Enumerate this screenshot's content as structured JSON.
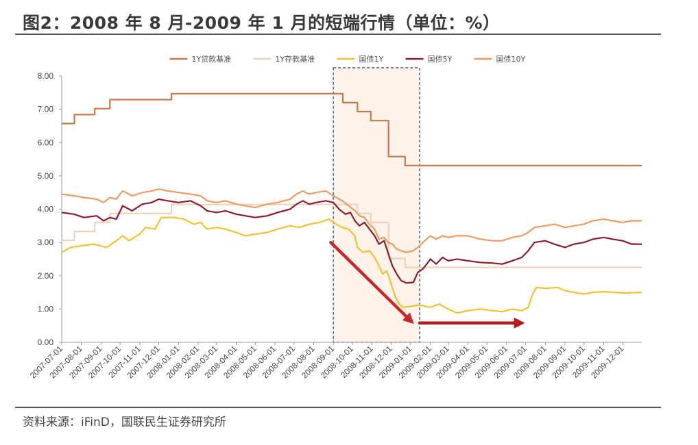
{
  "header": {
    "title": "图2：2008 年 8 月-2009 年 1 月的短端行情（单位：%）"
  },
  "footer": {
    "source": "资料来源：iFinD，国联民生证券研究所"
  },
  "chart_data": {
    "type": "line",
    "title": "图2：2008 年 8 月-2009 年 1 月的短端行情（单位：%）",
    "ylim": [
      0,
      8
    ],
    "y_ticks": [
      "0.00",
      "1.00",
      "2.00",
      "3.00",
      "4.00",
      "5.00",
      "6.00",
      "7.00",
      "8.00"
    ],
    "x_range": [
      "2007-07-01",
      "2009-12-31"
    ],
    "x_ticks": [
      "2007-07-01",
      "2007-08-01",
      "2007-09-01",
      "2007-10-01",
      "2007-11-01",
      "2007-12-01",
      "2008-01-01",
      "2008-02-01",
      "2008-03-01",
      "2008-04-01",
      "2008-05-01",
      "2008-06-01",
      "2008-07-01",
      "2008-08-01",
      "2008-09-01",
      "2008-10-01",
      "2008-11-01",
      "2008-12-01",
      "2009-01-01",
      "2009-02-01",
      "2009-03-01",
      "2009-04-01",
      "2009-05-01",
      "2009-06-01",
      "2009-07-01",
      "2009-08-01",
      "2009-09-01",
      "2009-10-01",
      "2009-11-01",
      "2009-12-01"
    ],
    "grid": false,
    "legend_position": "top",
    "highlight_region": {
      "from": "2008-09-01",
      "to": "2009-01-15",
      "fill": "#fdf3ea"
    },
    "annotations": [
      {
        "type": "arrow",
        "from": [
          "2008-08-28",
          3.0
        ],
        "to": [
          "2009-01-06",
          0.55
        ],
        "color": "#c62828"
      },
      {
        "type": "arrow",
        "from": [
          "2009-01-15",
          0.58
        ],
        "to": [
          "2009-06-30",
          0.58
        ],
        "color": "#b71c1c"
      }
    ],
    "series": [
      {
        "name": "1Y贷款基准",
        "color": "#c8794a",
        "step": true,
        "points": [
          [
            "2007-07-01",
            6.57
          ],
          [
            "2007-07-21",
            6.84
          ],
          [
            "2007-08-22",
            7.02
          ],
          [
            "2007-09-15",
            7.29
          ],
          [
            "2007-12-21",
            7.47
          ],
          [
            "2008-09-16",
            7.2
          ],
          [
            "2008-10-09",
            6.93
          ],
          [
            "2008-10-30",
            6.66
          ],
          [
            "2008-11-27",
            5.58
          ],
          [
            "2008-12-23",
            5.31
          ],
          [
            "2009-12-31",
            5.31
          ]
        ]
      },
      {
        "name": "1Y存款基准",
        "color": "#ecd3b8",
        "step": true,
        "points": [
          [
            "2007-07-01",
            3.06
          ],
          [
            "2007-07-21",
            3.33
          ],
          [
            "2007-08-22",
            3.6
          ],
          [
            "2007-09-15",
            3.87
          ],
          [
            "2007-12-21",
            4.14
          ],
          [
            "2008-10-09",
            3.87
          ],
          [
            "2008-10-30",
            3.6
          ],
          [
            "2008-11-27",
            2.52
          ],
          [
            "2008-12-23",
            2.25
          ],
          [
            "2009-12-31",
            2.25
          ]
        ]
      },
      {
        "name": "国债1Y",
        "color": "#f2c12e",
        "points": [
          [
            "2007-07-01",
            2.7
          ],
          [
            "2007-07-15",
            2.85
          ],
          [
            "2007-08-01",
            2.9
          ],
          [
            "2007-08-20",
            2.95
          ],
          [
            "2007-09-10",
            2.85
          ],
          [
            "2007-09-25",
            3.05
          ],
          [
            "2007-10-05",
            3.2
          ],
          [
            "2007-10-15",
            3.05
          ],
          [
            "2007-11-01",
            3.25
          ],
          [
            "2007-11-10",
            3.45
          ],
          [
            "2007-11-25",
            3.4
          ],
          [
            "2007-12-05",
            3.75
          ],
          [
            "2007-12-25",
            3.75
          ],
          [
            "2008-01-10",
            3.7
          ],
          [
            "2008-01-25",
            3.55
          ],
          [
            "2008-02-05",
            3.6
          ],
          [
            "2008-02-15",
            3.4
          ],
          [
            "2008-03-01",
            3.45
          ],
          [
            "2008-03-15",
            3.4
          ],
          [
            "2008-04-01",
            3.3
          ],
          [
            "2008-04-15",
            3.2
          ],
          [
            "2008-05-01",
            3.25
          ],
          [
            "2008-05-20",
            3.3
          ],
          [
            "2008-06-05",
            3.4
          ],
          [
            "2008-06-25",
            3.5
          ],
          [
            "2008-07-10",
            3.45
          ],
          [
            "2008-07-25",
            3.55
          ],
          [
            "2008-08-10",
            3.6
          ],
          [
            "2008-08-25",
            3.7
          ],
          [
            "2008-09-05",
            3.55
          ],
          [
            "2008-09-15",
            3.45
          ],
          [
            "2008-09-25",
            3.4
          ],
          [
            "2008-10-05",
            3.2
          ],
          [
            "2008-10-09",
            2.85
          ],
          [
            "2008-10-18",
            2.7
          ],
          [
            "2008-10-28",
            2.75
          ],
          [
            "2008-11-05",
            2.55
          ],
          [
            "2008-11-12",
            2.3
          ],
          [
            "2008-11-18",
            2.05
          ],
          [
            "2008-11-24",
            2.15
          ],
          [
            "2008-11-28",
            1.95
          ],
          [
            "2008-12-02",
            1.7
          ],
          [
            "2008-12-08",
            1.35
          ],
          [
            "2008-12-14",
            1.15
          ],
          [
            "2008-12-20",
            1.05
          ],
          [
            "2008-12-31",
            1.08
          ],
          [
            "2009-01-15",
            1.12
          ],
          [
            "2009-02-01",
            1.05
          ],
          [
            "2009-02-15",
            1.15
          ],
          [
            "2009-03-01",
            1.0
          ],
          [
            "2009-03-15",
            0.88
          ],
          [
            "2009-04-01",
            0.95
          ],
          [
            "2009-04-20",
            1.0
          ],
          [
            "2009-05-10",
            0.95
          ],
          [
            "2009-05-25",
            0.92
          ],
          [
            "2009-06-10",
            1.0
          ],
          [
            "2009-06-25",
            0.95
          ],
          [
            "2009-07-05",
            1.05
          ],
          [
            "2009-07-12",
            1.45
          ],
          [
            "2009-07-18",
            1.65
          ],
          [
            "2009-08-01",
            1.62
          ],
          [
            "2009-08-20",
            1.65
          ],
          [
            "2009-09-01",
            1.55
          ],
          [
            "2009-09-15",
            1.5
          ],
          [
            "2009-10-01",
            1.45
          ],
          [
            "2009-10-15",
            1.5
          ],
          [
            "2009-11-01",
            1.52
          ],
          [
            "2009-11-20",
            1.5
          ],
          [
            "2009-12-05",
            1.48
          ],
          [
            "2009-12-31",
            1.5
          ]
        ]
      },
      {
        "name": "国债5Y",
        "color": "#8b1a2b",
        "points": [
          [
            "2007-07-01",
            3.9
          ],
          [
            "2007-07-20",
            3.85
          ],
          [
            "2007-08-05",
            3.75
          ],
          [
            "2007-08-25",
            3.8
          ],
          [
            "2007-09-05",
            3.65
          ],
          [
            "2007-09-15",
            3.75
          ],
          [
            "2007-09-25",
            3.7
          ],
          [
            "2007-10-05",
            4.1
          ],
          [
            "2007-10-20",
            3.95
          ],
          [
            "2007-11-05",
            4.15
          ],
          [
            "2007-11-20",
            4.2
          ],
          [
            "2007-12-01",
            4.3
          ],
          [
            "2007-12-15",
            4.25
          ],
          [
            "2008-01-01",
            4.2
          ],
          [
            "2008-01-20",
            4.25
          ],
          [
            "2008-02-05",
            4.1
          ],
          [
            "2008-02-15",
            3.95
          ],
          [
            "2008-03-01",
            3.9
          ],
          [
            "2008-03-15",
            3.95
          ],
          [
            "2008-04-01",
            3.85
          ],
          [
            "2008-04-15",
            3.8
          ],
          [
            "2008-05-01",
            3.75
          ],
          [
            "2008-05-20",
            3.8
          ],
          [
            "2008-06-05",
            3.9
          ],
          [
            "2008-06-25",
            4.0
          ],
          [
            "2008-07-05",
            4.15
          ],
          [
            "2008-07-15",
            4.25
          ],
          [
            "2008-07-25",
            4.15
          ],
          [
            "2008-08-05",
            4.2
          ],
          [
            "2008-08-20",
            4.25
          ],
          [
            "2008-09-01",
            4.2
          ],
          [
            "2008-09-10",
            4.0
          ],
          [
            "2008-09-20",
            3.85
          ],
          [
            "2008-09-28",
            3.9
          ],
          [
            "2008-10-05",
            3.65
          ],
          [
            "2008-10-12",
            3.5
          ],
          [
            "2008-10-20",
            3.6
          ],
          [
            "2008-10-28",
            3.4
          ],
          [
            "2008-11-05",
            3.2
          ],
          [
            "2008-11-12",
            2.95
          ],
          [
            "2008-11-20",
            3.05
          ],
          [
            "2008-11-26",
            2.7
          ],
          [
            "2008-12-03",
            2.3
          ],
          [
            "2008-12-10",
            2.05
          ],
          [
            "2008-12-17",
            1.85
          ],
          [
            "2008-12-25",
            1.78
          ],
          [
            "2009-01-05",
            1.8
          ],
          [
            "2009-01-12",
            2.1
          ],
          [
            "2009-01-20",
            2.2
          ],
          [
            "2009-02-01",
            2.5
          ],
          [
            "2009-02-10",
            2.35
          ],
          [
            "2009-02-20",
            2.55
          ],
          [
            "2009-03-01",
            2.45
          ],
          [
            "2009-03-15",
            2.5
          ],
          [
            "2009-04-01",
            2.45
          ],
          [
            "2009-04-20",
            2.4
          ],
          [
            "2009-05-10",
            2.38
          ],
          [
            "2009-05-25",
            2.35
          ],
          [
            "2009-06-10",
            2.45
          ],
          [
            "2009-06-25",
            2.55
          ],
          [
            "2009-07-05",
            2.75
          ],
          [
            "2009-07-15",
            3.0
          ],
          [
            "2009-08-01",
            3.05
          ],
          [
            "2009-08-15",
            2.95
          ],
          [
            "2009-09-01",
            2.85
          ],
          [
            "2009-09-15",
            2.95
          ],
          [
            "2009-10-01",
            3.0
          ],
          [
            "2009-10-15",
            3.1
          ],
          [
            "2009-11-01",
            3.15
          ],
          [
            "2009-11-15",
            3.1
          ],
          [
            "2009-12-01",
            3.05
          ],
          [
            "2009-12-15",
            2.95
          ],
          [
            "2009-12-31",
            2.95
          ]
        ]
      },
      {
        "name": "国债10Y",
        "color": "#ef9a62",
        "points": [
          [
            "2007-07-01",
            4.45
          ],
          [
            "2007-07-20",
            4.4
          ],
          [
            "2007-08-05",
            4.35
          ],
          [
            "2007-08-25",
            4.3
          ],
          [
            "2007-09-05",
            4.2
          ],
          [
            "2007-09-15",
            4.35
          ],
          [
            "2007-09-25",
            4.3
          ],
          [
            "2007-10-05",
            4.55
          ],
          [
            "2007-10-20",
            4.4
          ],
          [
            "2007-11-05",
            4.5
          ],
          [
            "2007-11-20",
            4.55
          ],
          [
            "2007-12-01",
            4.6
          ],
          [
            "2007-12-15",
            4.55
          ],
          [
            "2008-01-01",
            4.5
          ],
          [
            "2008-01-20",
            4.45
          ],
          [
            "2008-02-05",
            4.4
          ],
          [
            "2008-02-15",
            4.25
          ],
          [
            "2008-03-01",
            4.2
          ],
          [
            "2008-03-15",
            4.25
          ],
          [
            "2008-04-01",
            4.15
          ],
          [
            "2008-04-15",
            4.1
          ],
          [
            "2008-05-01",
            4.05
          ],
          [
            "2008-05-20",
            4.15
          ],
          [
            "2008-06-05",
            4.2
          ],
          [
            "2008-06-25",
            4.3
          ],
          [
            "2008-07-05",
            4.45
          ],
          [
            "2008-07-15",
            4.55
          ],
          [
            "2008-07-25",
            4.45
          ],
          [
            "2008-08-05",
            4.5
          ],
          [
            "2008-08-20",
            4.55
          ],
          [
            "2008-09-01",
            4.4
          ],
          [
            "2008-09-15",
            4.25
          ],
          [
            "2008-09-25",
            4.1
          ],
          [
            "2008-10-05",
            3.95
          ],
          [
            "2008-10-12",
            3.8
          ],
          [
            "2008-10-20",
            3.75
          ],
          [
            "2008-10-28",
            3.55
          ],
          [
            "2008-11-05",
            3.4
          ],
          [
            "2008-11-12",
            3.1
          ],
          [
            "2008-11-20",
            3.15
          ],
          [
            "2008-11-26",
            3.0
          ],
          [
            "2008-12-03",
            2.95
          ],
          [
            "2008-12-10",
            2.8
          ],
          [
            "2008-12-17",
            2.75
          ],
          [
            "2008-12-25",
            2.7
          ],
          [
            "2009-01-05",
            2.75
          ],
          [
            "2009-01-12",
            2.85
          ],
          [
            "2009-01-20",
            3.0
          ],
          [
            "2009-02-01",
            3.2
          ],
          [
            "2009-02-10",
            3.1
          ],
          [
            "2009-02-20",
            3.2
          ],
          [
            "2009-03-01",
            3.15
          ],
          [
            "2009-03-15",
            3.2
          ],
          [
            "2009-04-01",
            3.2
          ],
          [
            "2009-04-20",
            3.1
          ],
          [
            "2009-05-10",
            3.05
          ],
          [
            "2009-05-25",
            3.05
          ],
          [
            "2009-06-10",
            3.15
          ],
          [
            "2009-06-25",
            3.2
          ],
          [
            "2009-07-05",
            3.3
          ],
          [
            "2009-07-15",
            3.45
          ],
          [
            "2009-08-01",
            3.5
          ],
          [
            "2009-08-15",
            3.55
          ],
          [
            "2009-09-01",
            3.45
          ],
          [
            "2009-09-15",
            3.5
          ],
          [
            "2009-10-01",
            3.55
          ],
          [
            "2009-10-15",
            3.65
          ],
          [
            "2009-11-01",
            3.7
          ],
          [
            "2009-11-15",
            3.65
          ],
          [
            "2009-12-01",
            3.6
          ],
          [
            "2009-12-15",
            3.65
          ],
          [
            "2009-12-31",
            3.65
          ]
        ]
      }
    ]
  }
}
